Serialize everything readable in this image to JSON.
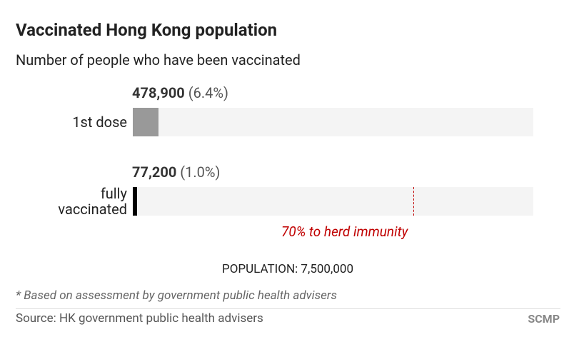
{
  "chart_data": {
    "type": "bar",
    "title": "Vaccinated Hong Kong population",
    "subtitle": "Number of people who have been vaccinated",
    "categories": [
      "1st dose",
      "fully vaccinated"
    ],
    "series": [
      {
        "name": "Vaccinated",
        "colors": [
          "#999999",
          "#000000"
        ],
        "values": [
          478900,
          77200
        ],
        "value_labels": [
          "478,900",
          "77,200"
        ],
        "share_labels": [
          "(6.4%)",
          "(1.0%)"
        ]
      }
    ],
    "xlim": [
      0,
      7500000
    ],
    "herd_immunity": {
      "value": 5250000,
      "label": "70% to herd immunity",
      "color": "#c00000"
    },
    "population": {
      "value": 7500000,
      "label": "POPULATION: 7,500,000"
    },
    "footnote": "* Based on assessment by government public health advisers",
    "source": "Source: HK government public health advisers",
    "credit": "SCMP"
  }
}
